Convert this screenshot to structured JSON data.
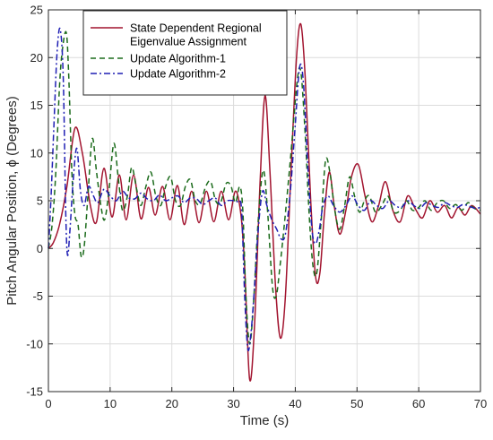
{
  "chart_data": {
    "type": "line",
    "xlabel": "Time (s)",
    "ylabel": "Pitch Angular Position, ϕ (Degrees)",
    "xlim": [
      0,
      70
    ],
    "ylim": [
      -15,
      25
    ],
    "xticks": [
      0,
      10,
      20,
      30,
      40,
      50,
      60,
      70
    ],
    "yticks": [
      -15,
      -10,
      -5,
      0,
      5,
      10,
      15,
      20,
      25
    ],
    "grid": true,
    "legend_position": "top-left",
    "series": [
      {
        "name_lines": [
          "State Dependent Regional",
          "Eigenvalue Assignment"
        ],
        "color": "#A2142F",
        "style": "solid",
        "points": [
          [
            0,
            0
          ],
          [
            0.8,
            0.6
          ],
          [
            1.8,
            2.5
          ],
          [
            3,
            6.5
          ],
          [
            4.3,
            12.6
          ],
          [
            5.5,
            10
          ],
          [
            6.8,
            4.5
          ],
          [
            7.8,
            2.8
          ],
          [
            9,
            8.4
          ],
          [
            10.3,
            3.3
          ],
          [
            11.5,
            7.7
          ],
          [
            12.6,
            3.0
          ],
          [
            13.8,
            7.7
          ],
          [
            15,
            3.1
          ],
          [
            16.2,
            6.4
          ],
          [
            17.3,
            3.5
          ],
          [
            18.5,
            6.5
          ],
          [
            19.7,
            3.0
          ],
          [
            20.9,
            6.6
          ],
          [
            22,
            2.5
          ],
          [
            23.2,
            6.0
          ],
          [
            24.4,
            2.7
          ],
          [
            25.6,
            6.0
          ],
          [
            26.8,
            2.8
          ],
          [
            28,
            6.0
          ],
          [
            29.2,
            3.0
          ],
          [
            30.3,
            6.0
          ],
          [
            31.2,
            3.5
          ],
          [
            31.8,
            -2
          ],
          [
            32.6,
            -13.7
          ],
          [
            33.4,
            -8
          ],
          [
            34.3,
            7
          ],
          [
            35.1,
            16
          ],
          [
            35.9,
            8
          ],
          [
            36.8,
            -4
          ],
          [
            37.6,
            -9.4
          ],
          [
            38.4,
            -5
          ],
          [
            39.3,
            8
          ],
          [
            40.2,
            20
          ],
          [
            40.9,
            23.5
          ],
          [
            41.6,
            18
          ],
          [
            42.5,
            5
          ],
          [
            43.3,
            -3
          ],
          [
            44.0,
            -2.5
          ],
          [
            44.7,
            3.5
          ],
          [
            45.5,
            8.0
          ],
          [
            46.3,
            4.5
          ],
          [
            47.2,
            1.5
          ],
          [
            48.2,
            4.0
          ],
          [
            49.1,
            7.5
          ],
          [
            50.2,
            8.8
          ],
          [
            51.3,
            5.5
          ],
          [
            52.4,
            2.8
          ],
          [
            53.5,
            4.5
          ],
          [
            54.6,
            7.0
          ],
          [
            55.8,
            4.0
          ],
          [
            57,
            2.8
          ],
          [
            58.2,
            5.5
          ],
          [
            59.4,
            4.2
          ],
          [
            60.6,
            3.2
          ],
          [
            61.8,
            5.0
          ],
          [
            63,
            3.8
          ],
          [
            64.2,
            4.5
          ],
          [
            65.3,
            3.2
          ],
          [
            66.4,
            4.3
          ],
          [
            67.5,
            3.5
          ],
          [
            68.6,
            4.5
          ],
          [
            70,
            3.6
          ]
        ]
      },
      {
        "name_lines": [
          "Update Algorithm-1"
        ],
        "color": "#1B6B1B",
        "style": "dashed",
        "points": [
          [
            0,
            0
          ],
          [
            0.6,
            2.5
          ],
          [
            1.2,
            8
          ],
          [
            1.8,
            17
          ],
          [
            2.3,
            21
          ],
          [
            2.9,
            22.6
          ],
          [
            3.3,
            18
          ],
          [
            3.8,
            8
          ],
          [
            4.3,
            3.5
          ],
          [
            4.8,
            2.5
          ],
          [
            5.3,
            -0.8
          ],
          [
            5.8,
            0.2
          ],
          [
            6.4,
            5.5
          ],
          [
            7.1,
            11.5
          ],
          [
            7.8,
            8
          ],
          [
            8.5,
            4.5
          ],
          [
            9.1,
            3.0
          ],
          [
            9.8,
            6.0
          ],
          [
            10.6,
            11.0
          ],
          [
            11.3,
            7.5
          ],
          [
            12.0,
            4.0
          ],
          [
            12.8,
            5.5
          ],
          [
            13.5,
            8.5
          ],
          [
            14.3,
            6.2
          ],
          [
            15,
            4.5
          ],
          [
            15.8,
            6.5
          ],
          [
            16.6,
            8.0
          ],
          [
            17.4,
            5.5
          ],
          [
            18.2,
            4.5
          ],
          [
            19,
            6.5
          ],
          [
            19.8,
            7.5
          ],
          [
            20.6,
            5.0
          ],
          [
            21.4,
            4.5
          ],
          [
            22.2,
            6.5
          ],
          [
            23,
            7.2
          ],
          [
            23.8,
            5.0
          ],
          [
            24.6,
            4.7
          ],
          [
            25.5,
            6.5
          ],
          [
            26.3,
            7.0
          ],
          [
            27.1,
            5.0
          ],
          [
            27.9,
            4.8
          ],
          [
            28.8,
            6.8
          ],
          [
            29.6,
            6.5
          ],
          [
            30.3,
            4.8
          ],
          [
            31.0,
            6.5
          ],
          [
            31.5,
            4.0
          ],
          [
            32.0,
            -5
          ],
          [
            32.6,
            -10
          ],
          [
            33.2,
            -6
          ],
          [
            34.0,
            3
          ],
          [
            34.8,
            8.2
          ],
          [
            35.5,
            4
          ],
          [
            36.3,
            -4
          ],
          [
            36.9,
            -5
          ],
          [
            37.5,
            -2
          ],
          [
            38.3,
            3
          ],
          [
            39.3,
            10
          ],
          [
            40.3,
            17.5
          ],
          [
            40.9,
            18.5
          ],
          [
            41.6,
            12
          ],
          [
            42.3,
            3
          ],
          [
            42.9,
            -2
          ],
          [
            43.5,
            -2.5
          ],
          [
            44.2,
            3
          ],
          [
            44.9,
            9.2
          ],
          [
            45.6,
            8
          ],
          [
            46.4,
            4
          ],
          [
            47.2,
            2
          ],
          [
            48.0,
            4.5
          ],
          [
            48.8,
            7.5
          ],
          [
            49.6,
            5.5
          ],
          [
            50.4,
            3.8
          ],
          [
            51.2,
            5.0
          ],
          [
            52.0,
            5.5
          ],
          [
            53,
            3.8
          ],
          [
            54,
            4.5
          ],
          [
            55,
            5.5
          ],
          [
            56,
            3.8
          ],
          [
            57,
            4.0
          ],
          [
            58,
            5.0
          ],
          [
            59,
            4.0
          ],
          [
            60,
            4.3
          ],
          [
            61,
            5.0
          ],
          [
            62,
            4.0
          ],
          [
            63,
            4.8
          ],
          [
            64,
            5.0
          ],
          [
            65,
            4.2
          ],
          [
            66,
            4.6
          ],
          [
            67,
            4.0
          ],
          [
            68,
            4.8
          ],
          [
            69,
            4.2
          ],
          [
            70,
            4.0
          ]
        ]
      },
      {
        "name_lines": [
          "Update Algorithm-2"
        ],
        "color": "#1F1FB4",
        "style": "dashdot",
        "points": [
          [
            0,
            0
          ],
          [
            0.4,
            5
          ],
          [
            0.9,
            13
          ],
          [
            1.4,
            20.5
          ],
          [
            1.9,
            23
          ],
          [
            2.4,
            18
          ],
          [
            2.8,
            4
          ],
          [
            3.1,
            -0.7
          ],
          [
            3.5,
            2
          ],
          [
            4.0,
            7
          ],
          [
            4.6,
            10.5
          ],
          [
            5.2,
            6
          ],
          [
            5.8,
            4.5
          ],
          [
            6.5,
            6.5
          ],
          [
            7.3,
            5.5
          ],
          [
            8.0,
            4.8
          ],
          [
            9,
            6.2
          ],
          [
            10,
            5.5
          ],
          [
            11,
            5.0
          ],
          [
            12,
            6.0
          ],
          [
            13,
            5.3
          ],
          [
            14,
            5.2
          ],
          [
            15,
            5.8
          ],
          [
            16,
            5.2
          ],
          [
            17,
            5.0
          ],
          [
            18,
            5.6
          ],
          [
            19,
            5.0
          ],
          [
            20,
            5.3
          ],
          [
            21,
            5.5
          ],
          [
            22,
            4.8
          ],
          [
            23,
            5.3
          ],
          [
            24,
            5.2
          ],
          [
            25,
            4.6
          ],
          [
            26,
            5.0
          ],
          [
            27,
            5.3
          ],
          [
            28,
            4.5
          ],
          [
            29,
            5.0
          ],
          [
            30,
            5.0
          ],
          [
            30.8,
            4.8
          ],
          [
            31.3,
            4.0
          ],
          [
            31.8,
            -5
          ],
          [
            32.3,
            -10.5
          ],
          [
            32.8,
            -9
          ],
          [
            33.4,
            -4
          ],
          [
            34.0,
            2
          ],
          [
            34.7,
            6.0
          ],
          [
            35.4,
            4.5
          ],
          [
            36.2,
            3
          ],
          [
            37.0,
            2
          ],
          [
            37.7,
            1.0
          ],
          [
            38.4,
            1.5
          ],
          [
            39.2,
            6
          ],
          [
            40.0,
            13
          ],
          [
            40.7,
            19
          ],
          [
            41.3,
            17.5
          ],
          [
            42.0,
            9
          ],
          [
            42.7,
            2
          ],
          [
            43.3,
            0.5
          ],
          [
            43.9,
            2
          ],
          [
            44.5,
            4.5
          ],
          [
            45.3,
            5.5
          ],
          [
            46.2,
            4.5
          ],
          [
            47.2,
            3.8
          ],
          [
            48.2,
            4.5
          ],
          [
            49.2,
            5.5
          ],
          [
            50.2,
            4.5
          ],
          [
            51.2,
            4.0
          ],
          [
            52.2,
            5.0
          ],
          [
            53.2,
            4.5
          ],
          [
            54.2,
            4.2
          ],
          [
            55.2,
            5.0
          ],
          [
            56.2,
            4.5
          ],
          [
            57.2,
            4.3
          ],
          [
            58.2,
            5.0
          ],
          [
            59.2,
            4.5
          ],
          [
            60.2,
            4.2
          ],
          [
            61.2,
            4.8
          ],
          [
            62.2,
            4.5
          ],
          [
            63.2,
            4.3
          ],
          [
            64.2,
            4.8
          ],
          [
            65.2,
            4.5
          ],
          [
            66.2,
            4.3
          ],
          [
            67.2,
            4.6
          ],
          [
            68.2,
            4.4
          ],
          [
            69.2,
            4.2
          ],
          [
            70,
            4.3
          ]
        ]
      }
    ]
  }
}
